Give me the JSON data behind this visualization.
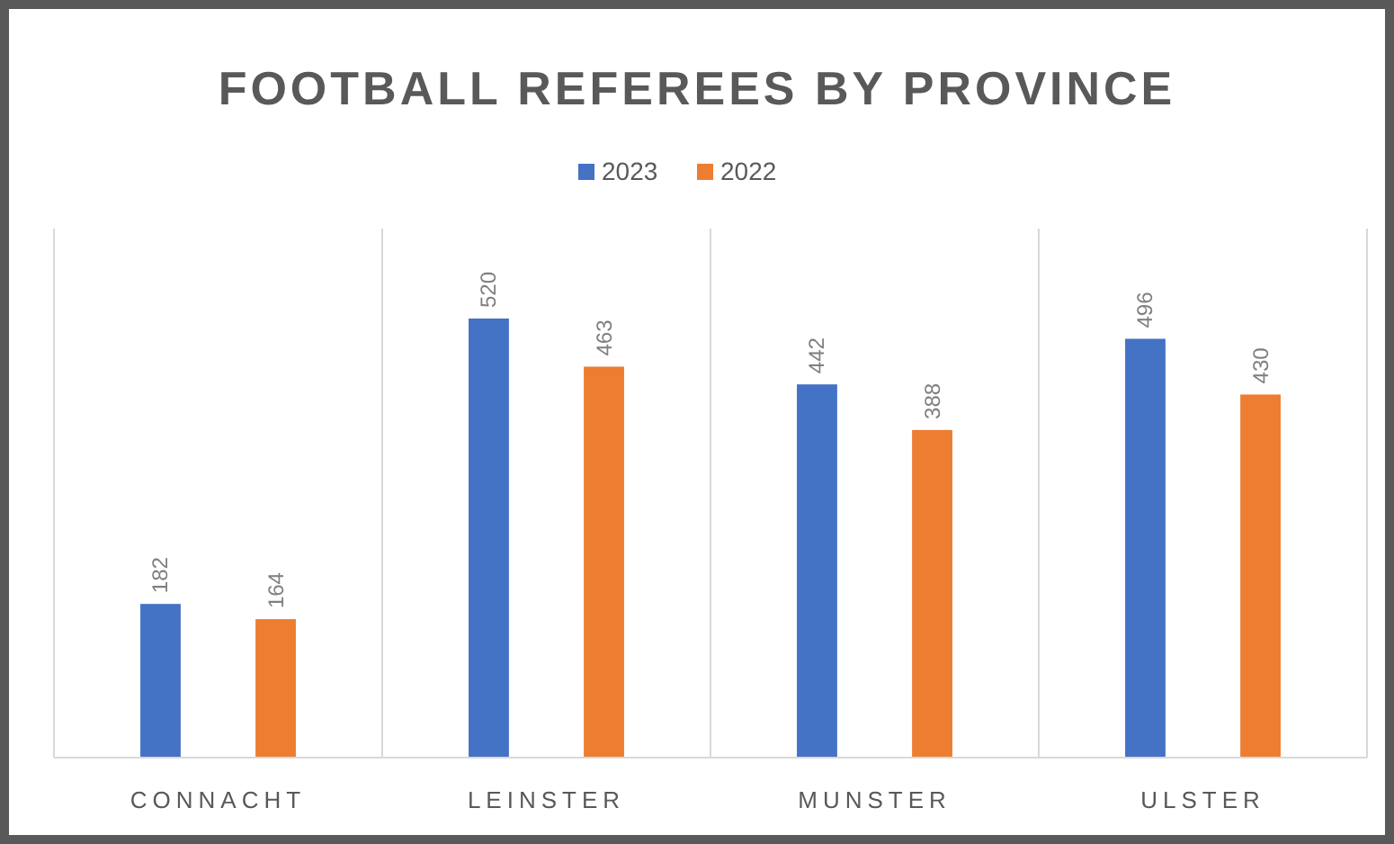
{
  "chart_data": {
    "type": "bar",
    "title": "FOOTBALL REFEREES BY PROVINCE",
    "categories": [
      "CONNACHT",
      "LEINSTER",
      "MUNSTER",
      "ULSTER"
    ],
    "series": [
      {
        "name": "2023",
        "color": "#4472c4",
        "values": [
          182,
          520,
          442,
          496
        ]
      },
      {
        "name": "2022",
        "color": "#ed7d31",
        "values": [
          164,
          463,
          388,
          430
        ]
      }
    ],
    "data_labels": true,
    "grid": "x",
    "legend": "top",
    "tick_labels": "x"
  }
}
